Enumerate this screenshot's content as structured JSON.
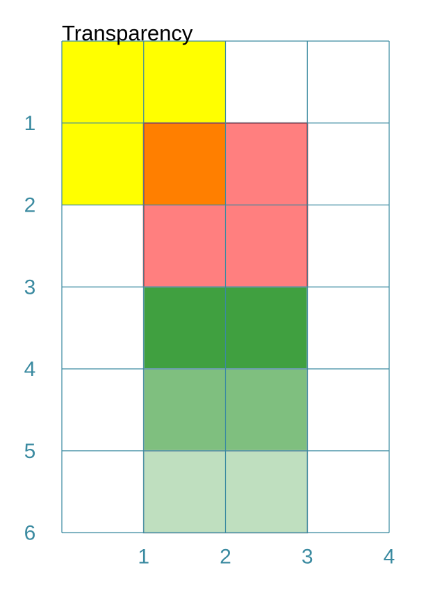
{
  "title": "Transparency",
  "colors": {
    "grid": "#3a8aa0",
    "ticks": "#3a8aa0",
    "background": "#ffffff"
  },
  "grid": {
    "x_range": [
      0,
      4
    ],
    "y_range": [
      0,
      6
    ],
    "x_ticks": [
      "1",
      "2",
      "3",
      "4"
    ],
    "y_ticks": [
      "1",
      "2",
      "3",
      "4",
      "5",
      "6"
    ]
  },
  "rects": [
    {
      "name": "yellow-square",
      "x": 0,
      "y": 0,
      "w": 2,
      "h": 2,
      "fill": "#ffff00",
      "opacity": 1.0,
      "stroke": "none"
    },
    {
      "name": "red-square",
      "x": 1,
      "y": 1,
      "w": 2,
      "h": 2,
      "fill": "#ff0000",
      "opacity": 0.5,
      "stroke": "#ff0000"
    },
    {
      "name": "green-rect-opaque",
      "x": 1,
      "y": 3,
      "w": 2,
      "h": 1,
      "fill": "#008000",
      "opacity": 0.75,
      "stroke": "#c0c0c0"
    },
    {
      "name": "green-rect-medium",
      "x": 1,
      "y": 4,
      "w": 2,
      "h": 1,
      "fill": "#008000",
      "opacity": 0.5,
      "stroke": "#c0c0c0"
    },
    {
      "name": "green-rect-light",
      "x": 1,
      "y": 5,
      "w": 2,
      "h": 1,
      "fill": "#008000",
      "opacity": 0.25,
      "stroke": "#c0c0c0"
    }
  ]
}
